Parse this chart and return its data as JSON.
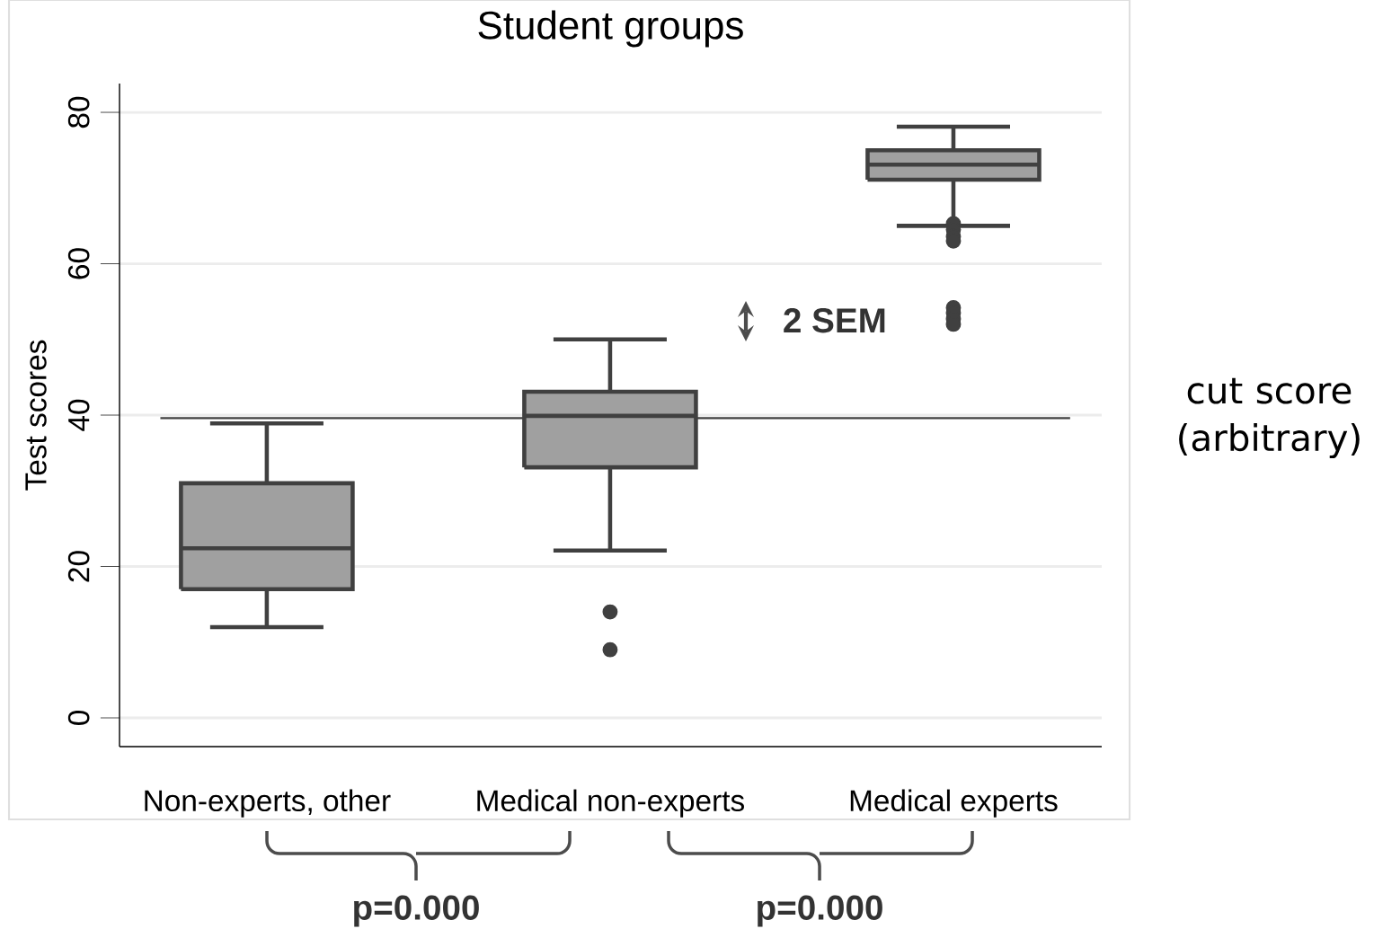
{
  "chart_data": {
    "type": "box",
    "title": "Student groups",
    "ylabel": "Test scores",
    "categories": [
      "Non-experts, other",
      "Medical non-experts",
      "Medical experts"
    ],
    "boxes": [
      {
        "low": 12,
        "q1": 17,
        "median": 22.4,
        "q3": 31,
        "high": 38.9
      },
      {
        "low": 22.1,
        "q1": 33.1,
        "median": 39.9,
        "q3": 43.1,
        "high": 50,
        "outliers": [
          14,
          9
        ]
      },
      {
        "low": 65,
        "q1": 71.1,
        "median": 73.1,
        "q3": 75,
        "high": 78.1,
        "outliers": [
          65.3,
          64.5,
          63.6,
          63,
          54.2,
          53.5,
          52.7,
          52
        ]
      }
    ],
    "color": "#a0a0a0",
    "ylim": [
      -3.8,
      83.8
    ],
    "yticks": [
      0,
      20,
      40,
      60,
      80
    ],
    "grid": "y",
    "ref_lines": [
      {
        "axis": "y",
        "value": 39.6,
        "label": "cut score (arbitrary)",
        "color": "#404040"
      }
    ],
    "annotations": [
      "2 SEM",
      "p=0.000",
      "p=0.000"
    ]
  }
}
